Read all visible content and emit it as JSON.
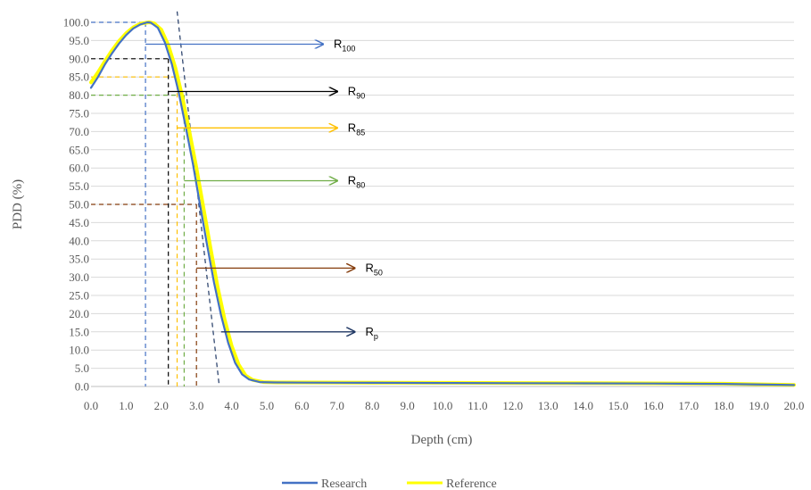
{
  "chart_data": {
    "type": "line",
    "xlabel": "Depth (cm)",
    "ylabel": "PDD (%)",
    "xlim": [
      0,
      20
    ],
    "ylim": [
      0,
      100
    ],
    "x_ticks": [
      "0.0",
      "1.0",
      "2.0",
      "3.0",
      "4.0",
      "5.0",
      "6.0",
      "7.0",
      "8.0",
      "9.0",
      "10.0",
      "11.0",
      "12.0",
      "13.0",
      "14.0",
      "15.0",
      "16.0",
      "17.0",
      "18.0",
      "19.0",
      "20.0"
    ],
    "y_ticks": [
      "0.0",
      "5.0",
      "10.0",
      "15.0",
      "20.0",
      "25.0",
      "30.0",
      "35.0",
      "40.0",
      "45.0",
      "50.0",
      "55.0",
      "60.0",
      "65.0",
      "70.0",
      "75.0",
      "80.0",
      "85.0",
      "90.0",
      "95.0",
      "100.0"
    ],
    "grid": "horizontal",
    "legend": "bottom",
    "series": [
      {
        "name": "Research",
        "color": "#4472C4",
        "points": [
          [
            0,
            82
          ],
          [
            0.2,
            85
          ],
          [
            0.4,
            88.5
          ],
          [
            0.6,
            91.5
          ],
          [
            0.8,
            94.2
          ],
          [
            1.0,
            96.5
          ],
          [
            1.2,
            98.3
          ],
          [
            1.4,
            99.4
          ],
          [
            1.6,
            100
          ],
          [
            1.7,
            99.9
          ],
          [
            1.9,
            98.5
          ],
          [
            2.1,
            94.5
          ],
          [
            2.3,
            88.5
          ],
          [
            2.5,
            80.5
          ],
          [
            2.7,
            71
          ],
          [
            2.9,
            61
          ],
          [
            3.1,
            50
          ],
          [
            3.3,
            39
          ],
          [
            3.5,
            28.5
          ],
          [
            3.7,
            19.5
          ],
          [
            3.9,
            12
          ],
          [
            4.1,
            6.5
          ],
          [
            4.3,
            3.3
          ],
          [
            4.5,
            1.9
          ],
          [
            4.8,
            1.2
          ],
          [
            5.2,
            1.1
          ],
          [
            6,
            1.05
          ],
          [
            8,
            1.0
          ],
          [
            10,
            0.95
          ],
          [
            12,
            0.9
          ],
          [
            14,
            0.85
          ],
          [
            16,
            0.8
          ],
          [
            18,
            0.7
          ],
          [
            20,
            0.4
          ]
        ]
      },
      {
        "name": "Reference",
        "color": "#FFFF00",
        "points": [
          [
            0,
            83.5
          ],
          [
            0.2,
            86.3
          ],
          [
            0.4,
            89.4
          ],
          [
            0.6,
            92.3
          ],
          [
            0.8,
            94.9
          ],
          [
            1.0,
            97
          ],
          [
            1.2,
            98.6
          ],
          [
            1.4,
            99.6
          ],
          [
            1.65,
            100
          ],
          [
            1.8,
            99.7
          ],
          [
            2.0,
            98
          ],
          [
            2.2,
            93.7
          ],
          [
            2.4,
            87.5
          ],
          [
            2.6,
            79.5
          ],
          [
            2.8,
            70
          ],
          [
            3.0,
            60
          ],
          [
            3.2,
            49
          ],
          [
            3.4,
            38
          ],
          [
            3.6,
            27.5
          ],
          [
            3.8,
            18.5
          ],
          [
            4.0,
            11.2
          ],
          [
            4.2,
            6
          ],
          [
            4.4,
            3
          ],
          [
            4.6,
            1.8
          ],
          [
            4.9,
            1.2
          ],
          [
            5.3,
            1.1
          ],
          [
            6,
            1.1
          ],
          [
            8,
            1.05
          ],
          [
            10,
            1.0
          ],
          [
            12,
            0.95
          ],
          [
            14,
            0.9
          ],
          [
            16,
            0.85
          ],
          [
            18,
            0.75
          ],
          [
            20,
            0.45
          ]
        ]
      }
    ],
    "annotations": [
      {
        "name": "R100",
        "label": "R",
        "sub": "100",
        "color": "#4472C4",
        "x": 1.55,
        "y": 100,
        "arrow_y": 94,
        "arrow_x_start": 1.55,
        "arrow_x_end": 6.6
      },
      {
        "name": "R90",
        "label": "R",
        "sub": "90",
        "color": "#000000",
        "x": 2.2,
        "y": 90,
        "arrow_y": 81,
        "arrow_x_start": 2.2,
        "arrow_x_end": 7.0
      },
      {
        "name": "R85",
        "label": "R",
        "sub": "85",
        "color": "#FFC000",
        "x": 2.45,
        "y": 85,
        "arrow_y": 71,
        "arrow_x_start": 2.45,
        "arrow_x_end": 7.0
      },
      {
        "name": "R80",
        "label": "R",
        "sub": "80",
        "color": "#70AD47",
        "x": 2.65,
        "y": 80,
        "arrow_y": 56.5,
        "arrow_x_start": 2.65,
        "arrow_x_end": 7.0
      },
      {
        "name": "R50",
        "label": "R",
        "sub": "50",
        "color": "#843C0C",
        "x": 3.0,
        "y": 50,
        "arrow_y": 32.5,
        "arrow_x_start": 3.0,
        "arrow_x_end": 7.5
      },
      {
        "name": "Rp",
        "label": "R",
        "sub": "p",
        "color": "#203864",
        "x": 3.65,
        "y": 0,
        "arrow_y": 15,
        "arrow_x_start": 3.7,
        "arrow_x_end": 7.5
      }
    ],
    "tangent_line": {
      "color": "#203864",
      "x1": 2.45,
      "y1": 103,
      "x2": 3.65,
      "y2": 0
    }
  }
}
